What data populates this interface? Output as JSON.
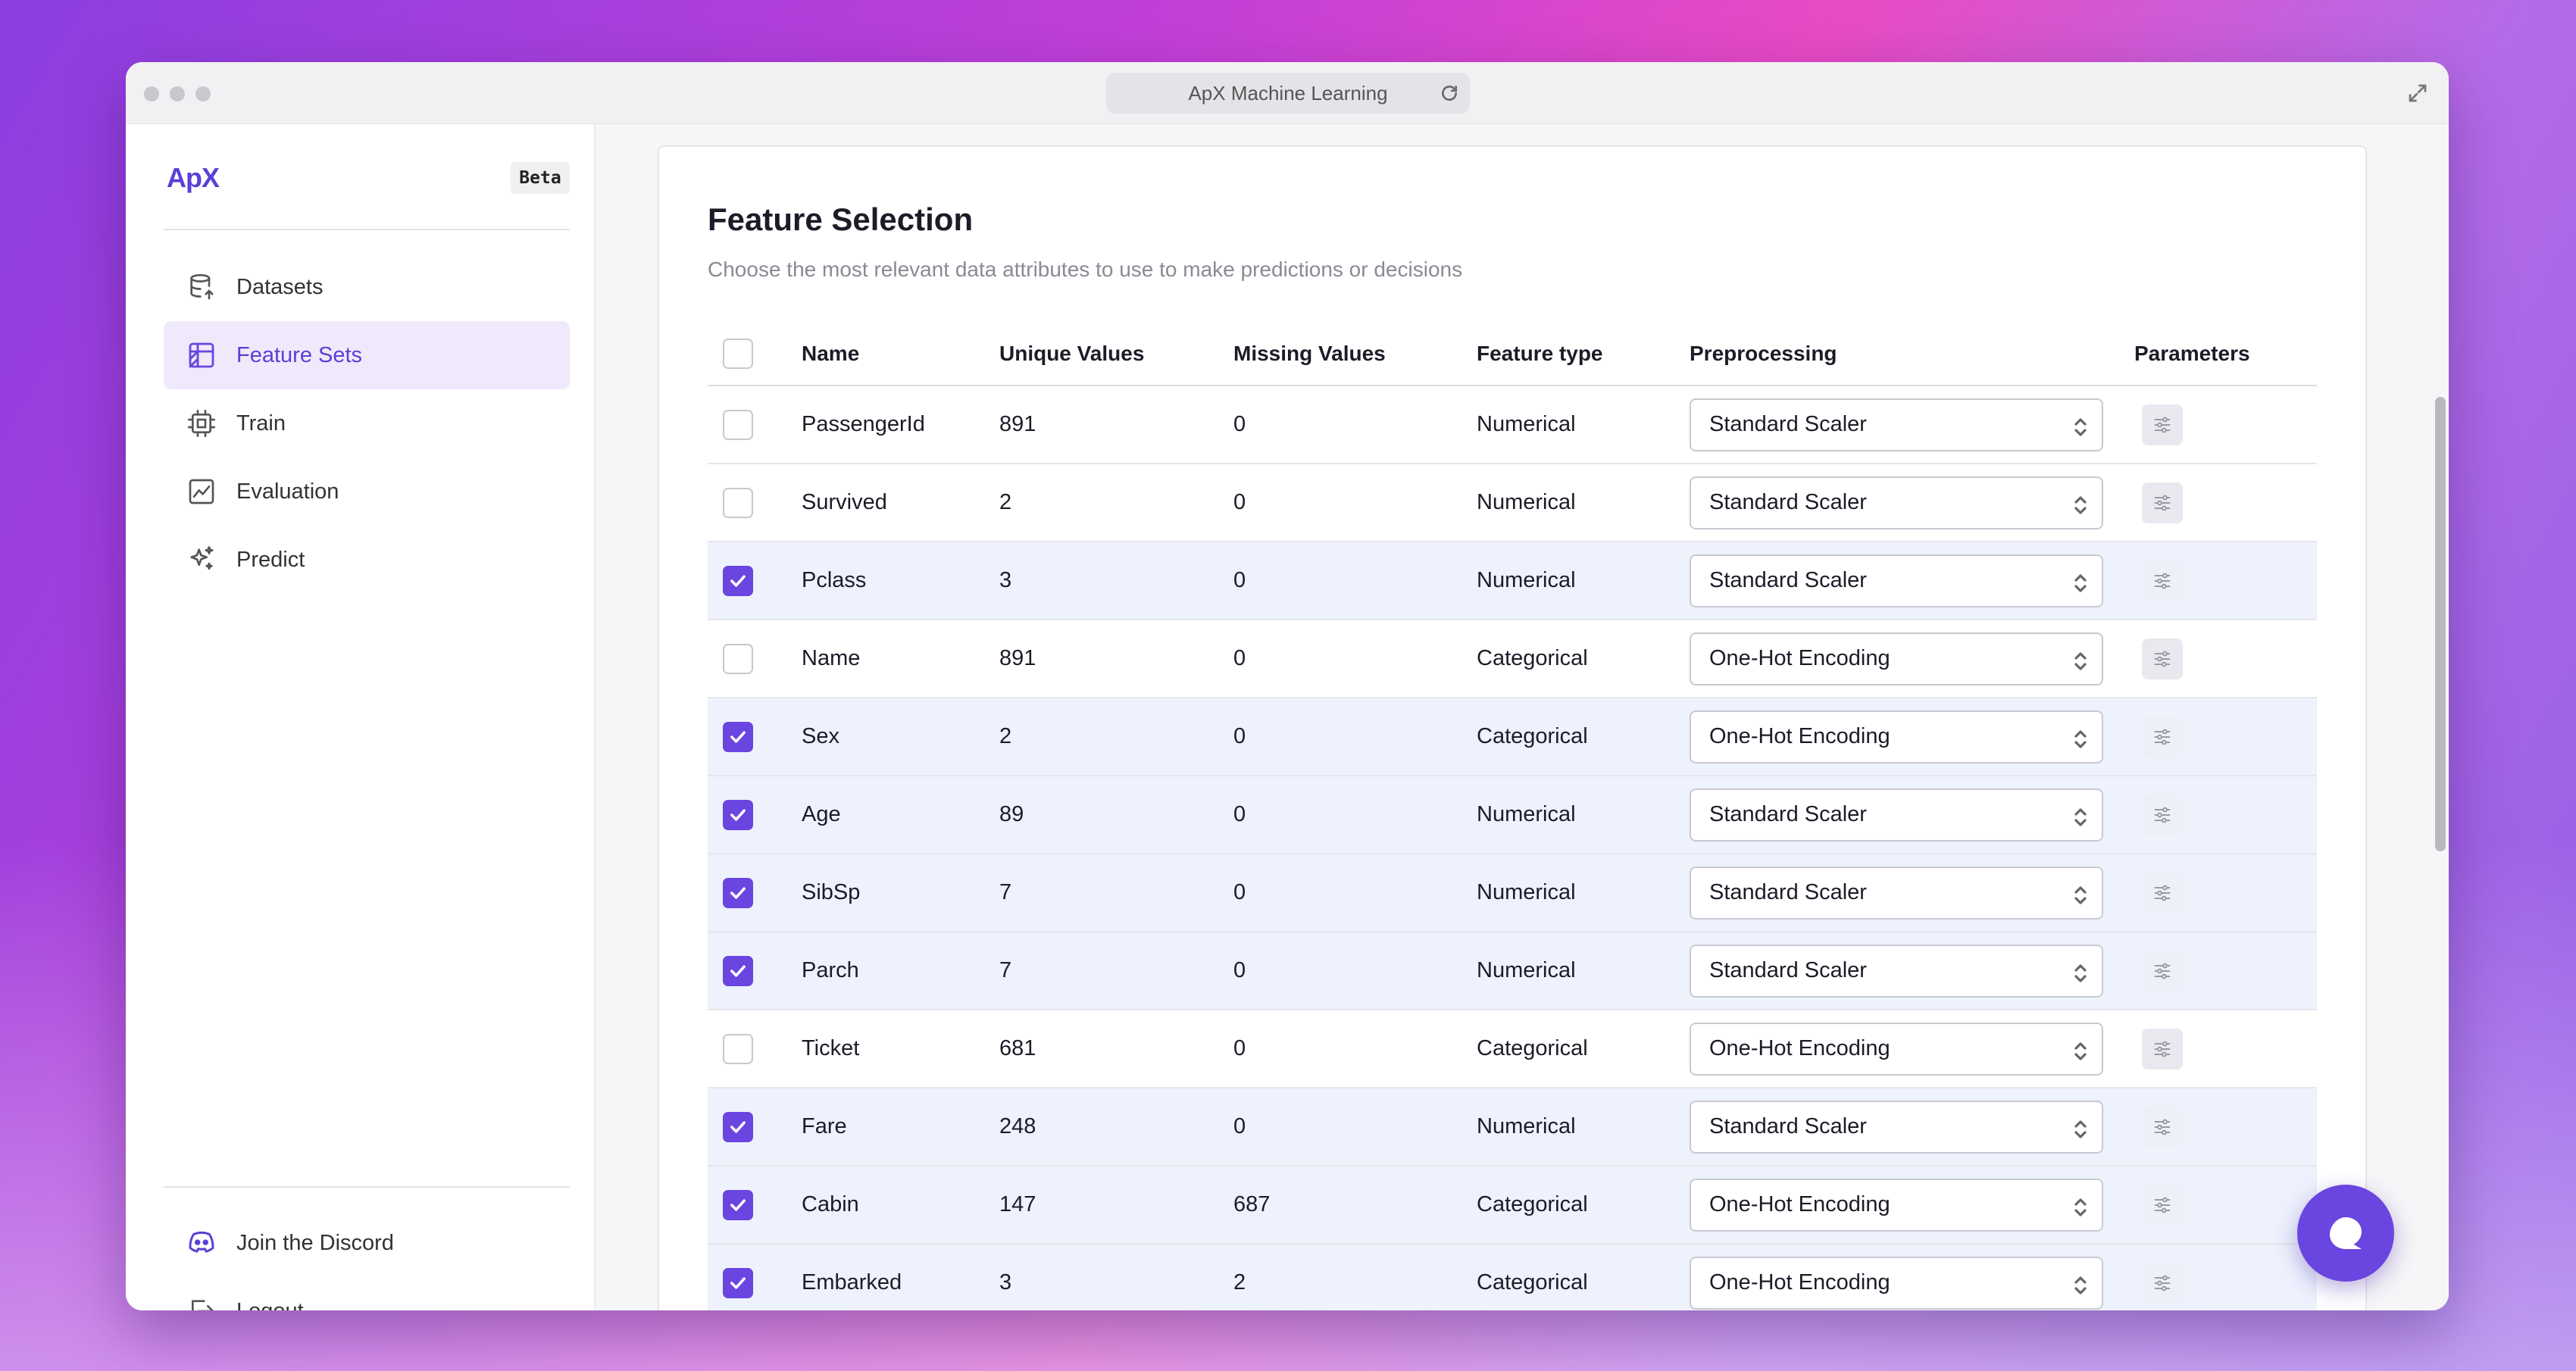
{
  "window": {
    "url_title": "ApX Machine Learning"
  },
  "sidebar": {
    "brand": "ApX",
    "badge": "Beta",
    "items": [
      {
        "label": "Datasets",
        "icon": "database-icon",
        "active": false
      },
      {
        "label": "Feature Sets",
        "icon": "table-icon",
        "active": true
      },
      {
        "label": "Train",
        "icon": "cpu-icon",
        "active": false
      },
      {
        "label": "Evaluation",
        "icon": "chart-icon",
        "active": false
      },
      {
        "label": "Predict",
        "icon": "sparkles-icon",
        "active": false
      }
    ],
    "footer": [
      {
        "label": "Join the Discord",
        "icon": "discord-icon"
      },
      {
        "label": "Logout",
        "icon": "logout-icon"
      }
    ]
  },
  "page": {
    "title": "Feature Selection",
    "subtitle": "Choose the most relevant data attributes to use to make predictions or decisions"
  },
  "table": {
    "headers": {
      "name": "Name",
      "unique": "Unique Values",
      "missing": "Missing Values",
      "type": "Feature type",
      "preprocessing": "Preprocessing",
      "parameters": "Parameters"
    },
    "rows": [
      {
        "selected": false,
        "name": "PassengerId",
        "unique": "891",
        "missing": "0",
        "type": "Numerical",
        "preprocessing": "Standard Scaler"
      },
      {
        "selected": false,
        "name": "Survived",
        "unique": "2",
        "missing": "0",
        "type": "Numerical",
        "preprocessing": "Standard Scaler"
      },
      {
        "selected": true,
        "name": "Pclass",
        "unique": "3",
        "missing": "0",
        "type": "Numerical",
        "preprocessing": "Standard Scaler"
      },
      {
        "selected": false,
        "name": "Name",
        "unique": "891",
        "missing": "0",
        "type": "Categorical",
        "preprocessing": "One-Hot Encoding"
      },
      {
        "selected": true,
        "name": "Sex",
        "unique": "2",
        "missing": "0",
        "type": "Categorical",
        "preprocessing": "One-Hot Encoding"
      },
      {
        "selected": true,
        "name": "Age",
        "unique": "89",
        "missing": "0",
        "type": "Numerical",
        "preprocessing": "Standard Scaler"
      },
      {
        "selected": true,
        "name": "SibSp",
        "unique": "7",
        "missing": "0",
        "type": "Numerical",
        "preprocessing": "Standard Scaler"
      },
      {
        "selected": true,
        "name": "Parch",
        "unique": "7",
        "missing": "0",
        "type": "Numerical",
        "preprocessing": "Standard Scaler"
      },
      {
        "selected": false,
        "name": "Ticket",
        "unique": "681",
        "missing": "0",
        "type": "Categorical",
        "preprocessing": "One-Hot Encoding"
      },
      {
        "selected": true,
        "name": "Fare",
        "unique": "248",
        "missing": "0",
        "type": "Numerical",
        "preprocessing": "Standard Scaler"
      },
      {
        "selected": true,
        "name": "Cabin",
        "unique": "147",
        "missing": "687",
        "type": "Categorical",
        "preprocessing": "One-Hot Encoding"
      },
      {
        "selected": true,
        "name": "Embarked",
        "unique": "3",
        "missing": "2",
        "type": "Categorical",
        "preprocessing": "One-Hot Encoding"
      }
    ]
  },
  "colors": {
    "accent": "#6a45e0",
    "selected_row": "#edf2fd"
  }
}
